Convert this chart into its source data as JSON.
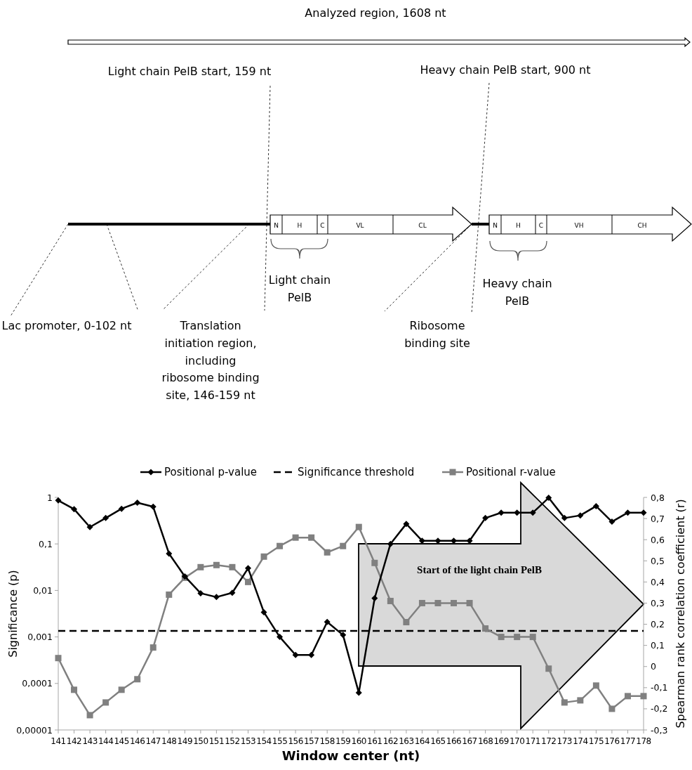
{
  "chart_data": {
    "type": "line",
    "categories": [
      "141",
      "142",
      "143",
      "144",
      "145",
      "146",
      "147",
      "148",
      "149",
      "150",
      "151",
      "152",
      "153",
      "154",
      "155",
      "156",
      "157",
      "158",
      "159",
      "160",
      "161",
      "162",
      "163",
      "164",
      "165",
      "166",
      "167",
      "168",
      "169",
      "170",
      "171",
      "172",
      "173",
      "174",
      "175",
      "176",
      "177",
      "178"
    ],
    "series": [
      {
        "name": "Positional p-value",
        "color": "#000000",
        "marker": "diamond",
        "values": [
          0.86,
          0.56,
          0.23,
          0.36,
          0.57,
          0.77,
          0.63,
          0.062,
          0.02,
          0.0087,
          0.0072,
          0.0089,
          0.03,
          0.0034,
          0.001,
          0.00041,
          0.00041,
          0.0021,
          0.0011,
          6.3e-05,
          0.0068,
          0.1,
          0.27,
          0.117,
          0.117,
          0.117,
          0.117,
          0.36,
          0.47,
          0.47,
          0.47,
          0.98,
          0.36,
          0.41,
          0.65,
          0.3,
          0.47,
          0.47
        ]
      },
      {
        "name": "Positional r-value",
        "color": "#808080",
        "marker": "square",
        "axis": "y2",
        "values": [
          0.04,
          -0.11,
          -0.23,
          -0.17,
          -0.11,
          -0.06,
          0.09,
          0.34,
          0.42,
          0.47,
          0.48,
          0.47,
          0.4,
          0.52,
          0.57,
          0.61,
          0.61,
          0.54,
          0.57,
          0.66,
          0.49,
          0.31,
          0.21,
          0.3,
          0.3,
          0.3,
          0.3,
          0.18,
          0.14,
          0.14,
          0.14,
          -0.01,
          -0.17,
          -0.16,
          -0.09,
          -0.2,
          -0.14,
          -0.14
        ]
      }
    ],
    "ref_lines": [
      {
        "axis": "y",
        "value": 0.00135,
        "label": "Significance threshold",
        "color": "#000000",
        "line_style": "dashed"
      }
    ],
    "log": "y",
    "ylim": [
      1e-05,
      1
    ],
    "yticks": [
      {
        "value": 1e-05,
        "label": "0,00001"
      },
      {
        "value": 0.0001,
        "label": "0,0001"
      },
      {
        "value": 0.001,
        "label": "0,001"
      },
      {
        "value": 0.01,
        "label": "0,01"
      },
      {
        "value": 0.1,
        "label": "0,1"
      },
      1
    ],
    "y2lim": [
      -0.3,
      0.8
    ],
    "y2ticks": [
      {
        "value": -0.3,
        "label": "-0,3"
      },
      {
        "value": -0.2,
        "label": "-0,2"
      },
      {
        "value": -0.1,
        "label": "-0,1"
      },
      0,
      {
        "value": 0.1,
        "label": "0,1"
      },
      {
        "value": 0.2,
        "label": "0,2"
      },
      {
        "value": 0.3,
        "label": "0,3"
      },
      {
        "value": 0.4,
        "label": "0,4"
      },
      {
        "value": 0.5,
        "label": "0,5"
      },
      {
        "value": 0.6,
        "label": "0,6"
      },
      {
        "value": 0.7,
        "label": "0,7"
      },
      {
        "value": 0.8,
        "label": "0,8"
      }
    ],
    "xlabel": "Window center (nt)",
    "ylabel": "Significance (p)",
    "y2label": "Spearman rank correlation coefficient (r)",
    "legend": "top",
    "grid": false,
    "annotations": [
      "Analyzed region, 1608 nt",
      "Light chain PelB start, 159 nt",
      "Heavy chain PelB start, 900 nt",
      "N",
      "H",
      "C",
      "VL",
      "CL",
      "N",
      "H",
      "C",
      "VH",
      "CH",
      "Light chain\nPelB",
      "Heavy chain\nPelB",
      "Lac promoter, 0-102 nt",
      "Translation\ninitiation region,\nincluding\nribosome binding\nsite, 146-159 nt",
      "Ribosome\nbinding site",
      "Start of the light chain PelB"
    ]
  }
}
